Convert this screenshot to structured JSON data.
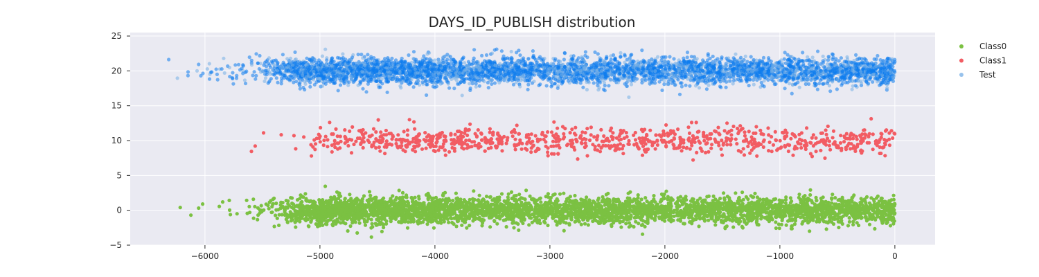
{
  "chart_data": {
    "type": "scatter",
    "title": "DAYS_ID_PUBLISH distribution",
    "xlabel": "",
    "ylabel": "",
    "xlim": [
      -6650,
      350
    ],
    "ylim": [
      -5,
      25.5
    ],
    "x_ticks": [
      -6000,
      -5000,
      -4000,
      -3000,
      -2000,
      -1000,
      0
    ],
    "x_tick_labels": [
      "−6000",
      "−5000",
      "−4000",
      "−3000",
      "−2000",
      "−1000",
      "0"
    ],
    "y_ticks": [
      -5,
      0,
      5,
      10,
      15,
      20,
      25
    ],
    "y_tick_labels": [
      "−5",
      "0",
      "5",
      "10",
      "15",
      "20",
      "25"
    ],
    "grid": true,
    "legend_position": "outside-right-top",
    "background": "#eaeaf2",
    "series": [
      {
        "name": "Class0",
        "color": "#7bc142",
        "y_center": 0,
        "x_range": [
          -6250,
          0
        ],
        "density": [
          [
            -6300,
            0.02
          ],
          [
            -5600,
            0.06
          ],
          [
            -5300,
            0.3
          ],
          [
            -5100,
            1.0
          ],
          [
            -4200,
            1.0
          ],
          [
            -3800,
            0.85
          ],
          [
            -3000,
            0.75
          ],
          [
            -1000,
            0.75
          ],
          [
            0,
            0.85
          ]
        ]
      },
      {
        "name": "Class1",
        "color": "#f25c63",
        "y_center": 10,
        "x_range": [
          -5600,
          0
        ],
        "density": [
          [
            -5600,
            0.01
          ],
          [
            -5100,
            0.02
          ],
          [
            -5000,
            0.25
          ],
          [
            -4200,
            0.3
          ],
          [
            -3000,
            0.25
          ],
          [
            -1000,
            0.25
          ],
          [
            0,
            0.3
          ]
        ]
      },
      {
        "name": "Test",
        "color": "#74aee6",
        "core_color": "#0d7cee",
        "y_center": 20,
        "x_range": [
          -6350,
          0
        ],
        "density": [
          [
            -6350,
            0.02
          ],
          [
            -5800,
            0.06
          ],
          [
            -5400,
            0.35
          ],
          [
            -5200,
            1.0
          ],
          [
            -4200,
            1.0
          ],
          [
            -3800,
            0.85
          ],
          [
            -3000,
            0.75
          ],
          [
            -1000,
            0.75
          ],
          [
            0,
            0.9
          ]
        ]
      }
    ]
  }
}
